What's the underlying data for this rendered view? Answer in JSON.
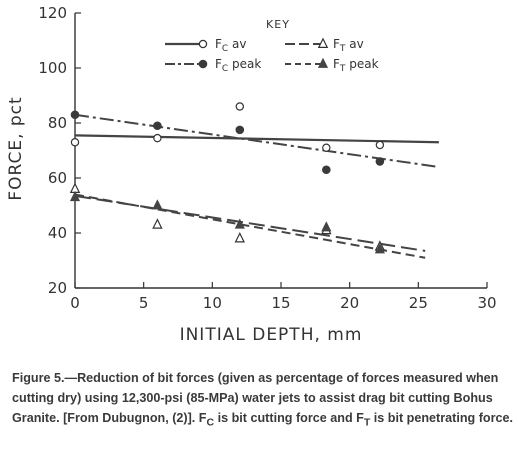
{
  "chart_data": {
    "type": "scatter",
    "xlabel": "INITIAL DEPTH, mm",
    "ylabel": "FORCE, pct",
    "xlim": [
      0,
      30
    ],
    "ylim": [
      20,
      120
    ],
    "xticks": [
      "0",
      "5",
      "10",
      "15",
      "20",
      "25",
      "30"
    ],
    "yticks": [
      "20",
      "40",
      "60",
      "80",
      "100",
      "120"
    ],
    "grid": false,
    "legend_title": "KEY",
    "legend_position": "top-right",
    "series": [
      {
        "name": "FC av",
        "name_main": "F",
        "name_sub": "C",
        "name_suffix": " av",
        "marker": "open-circle",
        "line": "solid",
        "x": [
          0,
          6,
          12,
          18.3,
          22.2
        ],
        "y": [
          73,
          74.5,
          86,
          71,
          72
        ],
        "fit": [
          [
            0,
            75.5
          ],
          [
            26.5,
            73
          ]
        ]
      },
      {
        "name": "FC peak",
        "name_main": "F",
        "name_sub": "C",
        "name_suffix": " peak",
        "marker": "filled-circle",
        "line": "dash-dot",
        "x": [
          0,
          6,
          12,
          18.3,
          22.2
        ],
        "y": [
          83,
          79,
          77.5,
          63,
          66
        ],
        "fit": [
          [
            0,
            83
          ],
          [
            26.5,
            64
          ]
        ]
      },
      {
        "name": "FT av",
        "name_main": "F",
        "name_sub": "T",
        "name_suffix": " av",
        "marker": "open-triangle",
        "line": "long-dash",
        "x": [
          0,
          6,
          12,
          18.3,
          22.2
        ],
        "y": [
          56,
          43,
          38,
          41,
          35
        ],
        "fit": [
          [
            0,
            53.5
          ],
          [
            25.5,
            33.5
          ]
        ]
      },
      {
        "name": "FT peak",
        "name_main": "F",
        "name_sub": "T",
        "name_suffix": " peak",
        "marker": "filled-triangle",
        "line": "dashed",
        "x": [
          0,
          6,
          12,
          18.3,
          22.2
        ],
        "y": [
          53,
          50,
          43,
          42,
          34
        ],
        "fit": [
          [
            0,
            54
          ],
          [
            25.5,
            31
          ]
        ]
      }
    ]
  },
  "caption": {
    "text": "Figure 5.—Reduction of bit forces (given as percentage of forces measured when cutting dry) using 12,300-psi (85-MPa) water jets to assist drag bit cutting Bohus Granite. [From Dubugnon, (2)]. ",
    "fc_main": "F",
    "fc_sub": "C",
    "fc_desc": " is bit cutting force and ",
    "ft_main": "F",
    "ft_sub": "T",
    "ft_desc": " is bit penetrating force."
  }
}
